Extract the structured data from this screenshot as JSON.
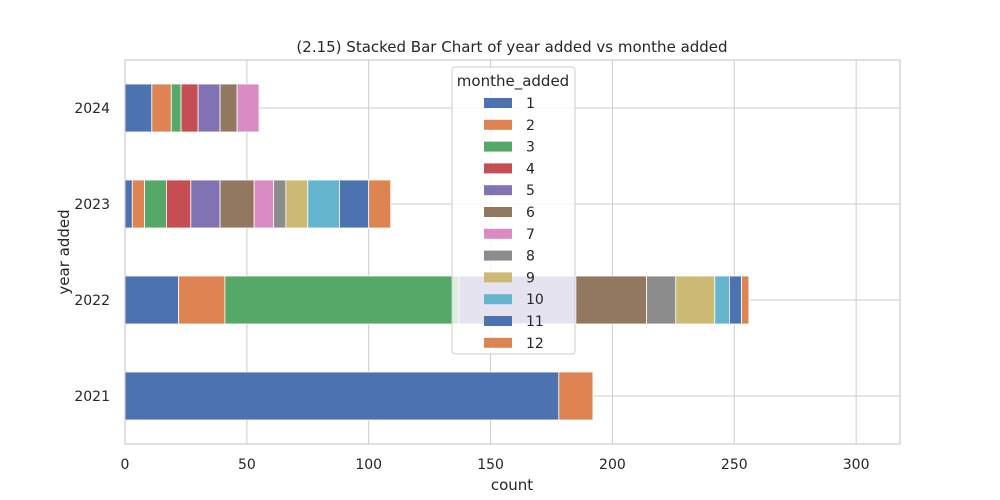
{
  "chart_data": {
    "type": "bar",
    "orientation": "horizontal",
    "stacked": true,
    "title": "(2.15) Stacked Bar Chart of  year added vs monthe added",
    "xlabel": "count",
    "ylabel": "year added",
    "xlim": [
      0,
      318
    ],
    "xticks": [
      0,
      50,
      100,
      150,
      200,
      250,
      300
    ],
    "categories": [
      "2021",
      "2022",
      "2023",
      "2024"
    ],
    "grid": true,
    "legend": {
      "title": "monthe_added",
      "placement": "upper-center"
    },
    "series": [
      {
        "name": "1",
        "color": "#4c72b0",
        "values": [
          178,
          22,
          3,
          11
        ]
      },
      {
        "name": "2",
        "color": "#dd8452",
        "values": [
          14,
          19,
          5,
          8
        ]
      },
      {
        "name": "3",
        "color": "#55a868",
        "values": [
          0,
          96,
          9,
          4
        ]
      },
      {
        "name": "4",
        "color": "#c44e52",
        "values": [
          0,
          0,
          10,
          7
        ]
      },
      {
        "name": "5",
        "color": "#8172b3",
        "values": [
          0,
          48,
          12,
          9
        ]
      },
      {
        "name": "6",
        "color": "#937860",
        "values": [
          0,
          29,
          14,
          7
        ]
      },
      {
        "name": "7",
        "color": "#da8bc3",
        "values": [
          0,
          0,
          8,
          9
        ]
      },
      {
        "name": "8",
        "color": "#8c8c8c",
        "values": [
          0,
          12,
          5,
          0
        ]
      },
      {
        "name": "9",
        "color": "#ccb974",
        "values": [
          0,
          16,
          9,
          0
        ]
      },
      {
        "name": "10",
        "color": "#64b5cd",
        "values": [
          0,
          6,
          13,
          0
        ]
      },
      {
        "name": "11",
        "color": "#4c72b0",
        "values": [
          0,
          5,
          12,
          0
        ]
      },
      {
        "name": "12",
        "color": "#dd8452",
        "values": [
          0,
          3,
          9,
          0
        ]
      }
    ]
  }
}
